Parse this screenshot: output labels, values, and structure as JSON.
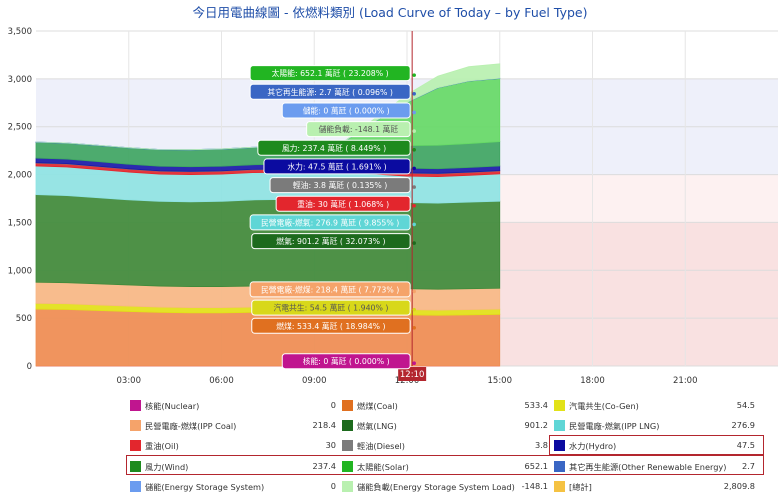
{
  "chart_data": {
    "type": "area",
    "title": "今日用電曲線圖 - 依燃料類別 (Load Curve of Today – by Fuel Type)",
    "ylim": [
      0,
      3500
    ],
    "yticks": [
      0,
      500,
      1000,
      1500,
      2000,
      2500,
      3000,
      3500
    ],
    "ytick_labels": [
      "0",
      "500",
      "1,000",
      "1,500",
      "2,000",
      "2,500",
      "3,000",
      "3,500"
    ],
    "xlim": [
      0,
      1440
    ],
    "xticks": [
      180,
      360,
      540,
      720,
      900,
      1080,
      1260
    ],
    "xtick_labels": [
      "03:00",
      "06:00",
      "09:00",
      "12:00",
      "15:00",
      "18:00",
      "21:00"
    ],
    "current_time_label": "12:10",
    "current_time_minutes": 730,
    "time_points": [
      0,
      60,
      120,
      180,
      240,
      300,
      360,
      420,
      480,
      540,
      600,
      660,
      720,
      780,
      840,
      900
    ],
    "series": [
      {
        "name": "核能(Nuclear)",
        "color": "#c0158f",
        "values": [
          0,
          0,
          0,
          0,
          0,
          0,
          0,
          0,
          0,
          0,
          0,
          0,
          0,
          0,
          0,
          0
        ]
      },
      {
        "name": "燃煤(Coal)",
        "color": "#ef8d52",
        "values": [
          595,
          590,
          580,
          570,
          560,
          555,
          555,
          560,
          560,
          565,
          555,
          545,
          535,
          530,
          535,
          540
        ]
      },
      {
        "name": "汽電共生(Co-Gen)",
        "color": "#e2e218",
        "values": [
          60,
          60,
          58,
          56,
          55,
          55,
          55,
          55,
          55,
          55,
          55,
          55,
          54,
          54,
          54,
          54
        ]
      },
      {
        "name": "民營電廠-燃煤(IPP Coal)",
        "color": "#f7b885",
        "values": [
          220,
          220,
          220,
          220,
          220,
          220,
          220,
          220,
          220,
          220,
          220,
          220,
          218,
          218,
          218,
          218
        ]
      },
      {
        "name": "燃氣(LNG)",
        "color": "#3f8a3a",
        "values": [
          915,
          910,
          900,
          890,
          885,
          885,
          890,
          900,
          905,
          905,
          905,
          905,
          900,
          900,
          905,
          910
        ]
      },
      {
        "name": "民營電廠-燃氣(IPP LNG)",
        "color": "#8ee3e3",
        "values": [
          300,
          300,
          295,
          290,
          285,
          285,
          285,
          285,
          285,
          285,
          285,
          280,
          277,
          277,
          280,
          285
        ]
      },
      {
        "name": "重油(Oil)",
        "color": "#e3262d",
        "values": [
          30,
          30,
          30,
          30,
          30,
          30,
          30,
          30,
          30,
          30,
          30,
          30,
          30,
          30,
          30,
          30
        ]
      },
      {
        "name": "輕油(Diesel)",
        "color": "#7b7b7b",
        "values": [
          4,
          4,
          4,
          4,
          4,
          4,
          4,
          4,
          4,
          4,
          4,
          4,
          4,
          4,
          4,
          4
        ]
      },
      {
        "name": "水力(Hydro)",
        "color": "#1a1aa8",
        "values": [
          48,
          48,
          48,
          48,
          48,
          48,
          48,
          48,
          48,
          48,
          48,
          48,
          48,
          48,
          48,
          48
        ]
      },
      {
        "name": "風力(Wind)",
        "color": "#3fa562",
        "values": [
          165,
          165,
          168,
          170,
          172,
          175,
          178,
          180,
          185,
          195,
          210,
          225,
          237,
          245,
          250,
          255
        ]
      },
      {
        "name": "太陽能(Solar)",
        "color": "#66d966",
        "values": [
          0,
          0,
          0,
          0,
          0,
          0,
          0,
          0,
          0,
          0,
          40,
          250,
          450,
          600,
          652,
          660
        ]
      },
      {
        "name": "其它再生能源(Other Renewable Energy)",
        "color": "#3a66c4",
        "values": [
          3,
          3,
          3,
          3,
          3,
          3,
          3,
          3,
          3,
          3,
          3,
          3,
          3,
          3,
          3,
          3
        ]
      },
      {
        "name": "儲能(Energy Storage System)",
        "color": "#6b9cef",
        "values": [
          0,
          0,
          0,
          0,
          0,
          0,
          0,
          0,
          0,
          0,
          0,
          0,
          0,
          0,
          0,
          0
        ]
      },
      {
        "name": "儲能負載(Energy Storage System Load)",
        "color": "#b9f0b0",
        "values": [
          0,
          0,
          0,
          0,
          0,
          0,
          0,
          0,
          0,
          0,
          0,
          30,
          80,
          120,
          148,
          150
        ]
      }
    ],
    "tooltips": [
      {
        "text": "太陽能: 652.1 萬瓩 ( 23.208% )",
        "color": "#22b522",
        "y": 3060
      },
      {
        "text": "其它再生能源: 2.7 萬瓩 ( 0.096% )",
        "color": "#3a66c4",
        "y": 2865
      },
      {
        "text": "儲能: 0 萬瓩 ( 0.000% )",
        "color": "#6b9cef",
        "y": 2670
      },
      {
        "text": "儲能負載: -148.1 萬瓩",
        "color": "#b9f0b0",
        "y": 2475
      },
      {
        "text": "風力: 237.4 萬瓩 ( 8.449% )",
        "color": "#1e8a1e",
        "y": 2280
      },
      {
        "text": "水力: 47.5 萬瓩 ( 1.691% )",
        "color": "#0b0ba0",
        "y": 2085
      },
      {
        "text": "輕油: 3.8 萬瓩 ( 0.135% )",
        "color": "#7b7b7b",
        "y": 1890
      },
      {
        "text": "重油: 30 萬瓩 ( 1.068% )",
        "color": "#e3262d",
        "y": 1695
      },
      {
        "text": "民營電廠-燃氣: 276.9 萬瓩 ( 9.855% )",
        "color": "#5fd6d6",
        "y": 1500
      },
      {
        "text": "燃氣: 901.2 萬瓩 ( 32.073% )",
        "color": "#1d6a1d",
        "y": 1305
      },
      {
        "text": "民營電廠-燃煤: 218.4 萬瓩 ( 7.773% )",
        "color": "#f5a36a",
        "y": 800
      },
      {
        "text": "汽電共生: 54.5 萬瓩 ( 1.940% )",
        "color": "#d8d81a",
        "y": 610
      },
      {
        "text": "燃煤: 533.4 萬瓩 ( 18.984% )",
        "color": "#e07020",
        "y": 420
      },
      {
        "text": "核能: 0 萬瓩 ( 0.000% )",
        "color": "#c0158f",
        "y": 50
      }
    ],
    "legend": [
      {
        "name": "核能(Nuclear)",
        "value": "0",
        "color": "#c0158f"
      },
      {
        "name": "燃煤(Coal)",
        "value": "533.4",
        "color": "#e07020"
      },
      {
        "name": "汽電共生(Co-Gen)",
        "value": "54.5",
        "color": "#e2e218"
      },
      {
        "name": "民營電廠-燃煤(IPP Coal)",
        "value": "218.4",
        "color": "#f5a36a"
      },
      {
        "name": "燃氣(LNG)",
        "value": "901.2",
        "color": "#1d6a1d"
      },
      {
        "name": "民營電廠-燃氣(IPP LNG)",
        "value": "276.9",
        "color": "#5fd6d6"
      },
      {
        "name": "重油(Oil)",
        "value": "30",
        "color": "#e3262d"
      },
      {
        "name": "輕油(Diesel)",
        "value": "3.8",
        "color": "#7b7b7b"
      },
      {
        "name": "水力(Hydro)",
        "value": "47.5",
        "color": "#0b0ba0"
      },
      {
        "name": "風力(Wind)",
        "value": "237.4",
        "color": "#1e8a1e"
      },
      {
        "name": "太陽能(Solar)",
        "value": "652.1",
        "color": "#22b522"
      },
      {
        "name": "其它再生能源(Other Renewable Energy)",
        "value": "2.7",
        "color": "#3a66c4"
      },
      {
        "name": "儲能(Energy Storage System)",
        "value": "0",
        "color": "#6b9cef"
      },
      {
        "name": "儲能負載(Energy Storage System Load)",
        "value": "-148.1",
        "color": "#b9f0b0"
      },
      {
        "name": "[總計]",
        "value": "2,809.8",
        "color": "#f5c242"
      }
    ],
    "highlighted_legend_items": [
      "水力(Hydro)",
      "風力(Wind)",
      "太陽能(Solar)",
      "其它再生能源(Other Renewable Energy)"
    ]
  }
}
